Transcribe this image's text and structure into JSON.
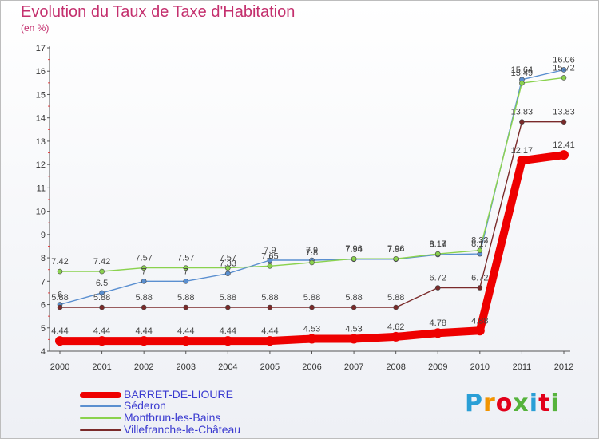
{
  "header": {
    "title": "Evolution du Taux de Taxe d'Habitation",
    "subtitle": "(en %)"
  },
  "logo": {
    "text": "Proxiti",
    "colors": [
      "#2a9fd6",
      "#f29400",
      "#e2001a",
      "#56b33c",
      "#2a9fd6",
      "#e2001a",
      "#56b33c"
    ]
  },
  "chart_data": {
    "type": "line",
    "x": [
      "2000",
      "2001",
      "2002",
      "2003",
      "2004",
      "2005",
      "2006",
      "2007",
      "2008",
      "2009",
      "2010",
      "2011",
      "2012"
    ],
    "ylim": [
      4,
      17
    ],
    "yticks": [
      "4",
      "5",
      "6",
      "7",
      "8",
      "9",
      "10",
      "11",
      "12",
      "13",
      "14",
      "15",
      "16",
      "17"
    ],
    "grid": false,
    "legend_position": "bottom-left",
    "series": [
      {
        "name": "BARRET-DE-LIOURE",
        "color": "#ee0000",
        "values": [
          4.44,
          4.44,
          4.44,
          4.44,
          4.44,
          4.44,
          4.53,
          4.53,
          4.62,
          4.78,
          4.88,
          12.17,
          12.41
        ],
        "labels": [
          "4.44",
          "4.44",
          "4.44",
          "4.44",
          "4.44",
          "4.44",
          "4.53",
          "4.53",
          "4.62",
          "4.78",
          "4.88",
          "12.17",
          "12.41"
        ]
      },
      {
        "name": "Séderon",
        "color": "#5a8fd0",
        "values": [
          6,
          6.5,
          7,
          7,
          7.33,
          7.9,
          7.9,
          7.94,
          7.94,
          8.14,
          8.17,
          15.64,
          16.06
        ],
        "labels": [
          "6",
          "6.5",
          "7",
          "7",
          "7.33",
          "7.9",
          "7.9",
          "7.94",
          "7.94",
          "8.14",
          "8.17",
          "15.64",
          "16.06"
        ]
      },
      {
        "name": "Montbrun-les-Bains",
        "color": "#8ad24e",
        "values": [
          7.42,
          7.42,
          7.57,
          7.57,
          7.57,
          7.65,
          7.8,
          7.96,
          7.96,
          8.17,
          8.32,
          15.49,
          15.72
        ],
        "labels": [
          "7.42",
          "7.42",
          "7.57",
          "7.57",
          "7.57",
          "7.65",
          "7.8",
          "7.96",
          "7.96",
          "8.17",
          "8.32",
          "15.49",
          "15.72"
        ]
      },
      {
        "name": "Villefranche-le-Château",
        "color": "#7a2a2a",
        "values": [
          5.88,
          5.88,
          5.88,
          5.88,
          5.88,
          5.88,
          5.88,
          5.88,
          5.88,
          6.72,
          6.72,
          13.83,
          13.83
        ],
        "labels": [
          "5.88",
          "5.88",
          "5.88",
          "5.88",
          "5.88",
          "5.88",
          "5.88",
          "5.88",
          "5.88",
          "6.72",
          "6.72",
          "13.83",
          "13.83"
        ]
      }
    ]
  }
}
